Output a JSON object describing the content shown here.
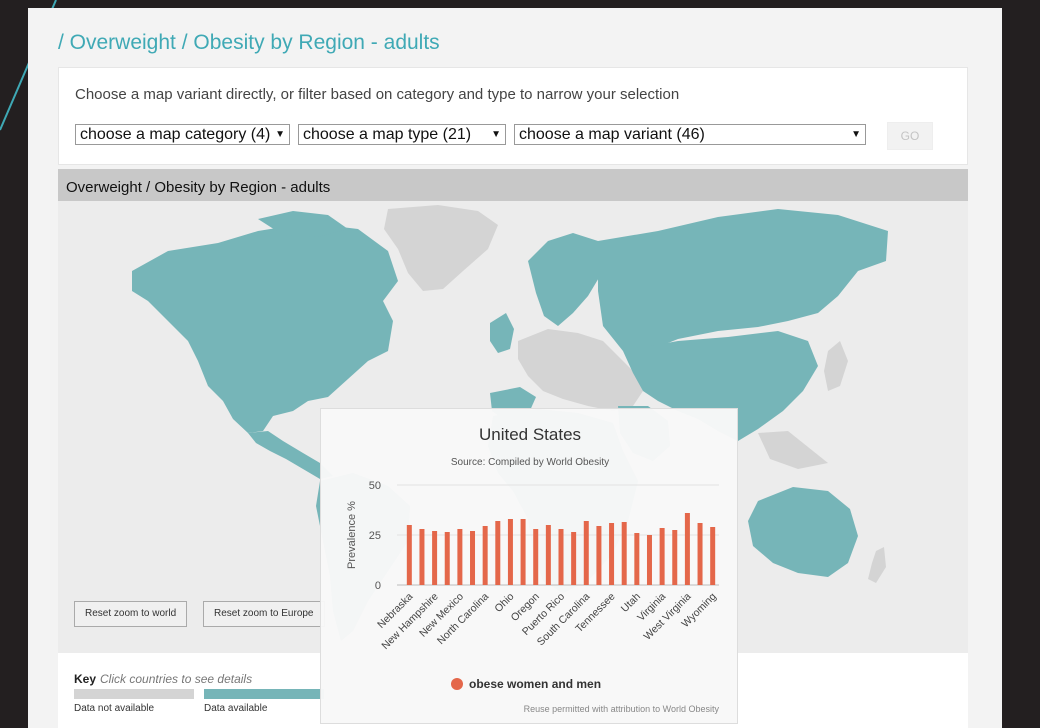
{
  "page": {
    "title": "/ Overweight / Obesity by Region - adults"
  },
  "filter": {
    "intro": "Choose a map variant directly, or filter based on category and type to narrow your selection",
    "category_select": "choose a map category (4)",
    "type_select": "choose a map type (21)",
    "variant_select": "choose a map variant (46)",
    "go_label": "GO"
  },
  "map": {
    "header": "Overweight / Obesity by Region - adults",
    "reset_world": "Reset zoom to world",
    "reset_europe": "Reset zoom to Europe",
    "colors": {
      "available": "#76b5b8",
      "not_available": "#d4d4d4",
      "ocean": "#ececec"
    }
  },
  "key": {
    "title": "Key",
    "hint": "Click countries to see details",
    "not_available": "Data not available",
    "available": "Data available"
  },
  "tooltip": {
    "title": "United States",
    "source": "Source: Compiled by World Obesity",
    "legend": "obese women and men",
    "credit": "Reuse permitted with attribution to World Obesity"
  },
  "chart_data": {
    "type": "bar",
    "ylabel": "Prevalence %",
    "ylim": [
      0,
      50
    ],
    "yticks": [
      0,
      25,
      50
    ],
    "color": "#e4674a",
    "tick_labels": [
      "Nebraska",
      "New Hampshire",
      "New Mexico",
      "North Carolina",
      "Ohio",
      "Oregon",
      "Puerto Rico",
      "South Carolina",
      "Tennessee",
      "Utah",
      "Virginia",
      "West Virginia",
      "Wyoming"
    ],
    "series": [
      {
        "name": "obese women and men",
        "values": [
          30,
          28,
          27,
          26.5,
          28,
          27,
          29.5,
          32,
          33,
          33,
          28,
          30,
          28,
          26.5,
          32,
          29.5,
          31,
          31.5,
          26,
          25,
          28.5,
          27.5,
          36,
          31,
          29
        ]
      }
    ]
  }
}
